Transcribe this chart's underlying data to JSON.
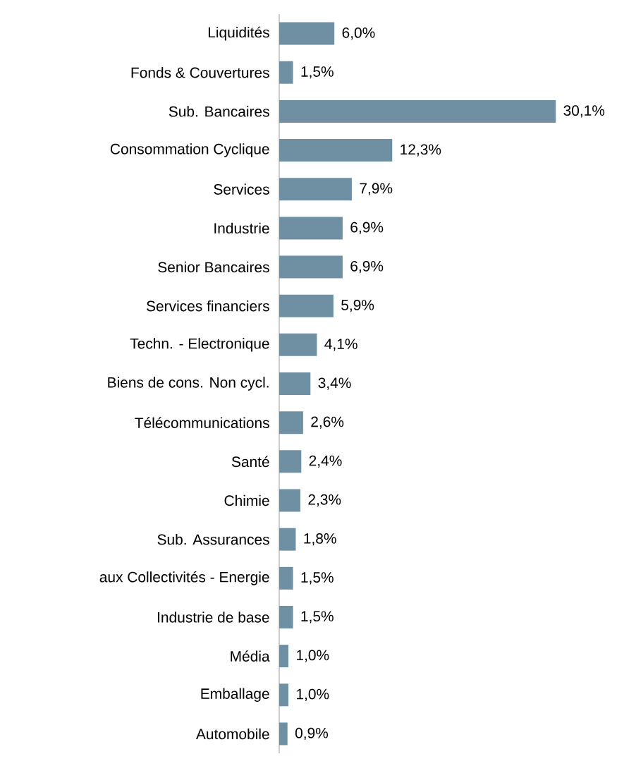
{
  "chart_data": {
    "type": "bar",
    "orientation": "horizontal",
    "color": "#6f8fa3",
    "categories": [
      "Liquidités",
      "Fonds & Couvertures",
      "Sub. Bancaires",
      "Consommation Cyclique",
      "Services",
      "Industrie",
      "Senior Bancaires",
      "Services financiers",
      "Techn. - Electronique",
      "Biens de cons. Non cycl.",
      "Télécommunications",
      "Santé",
      "Chimie",
      "Sub. Assurances",
      "aux Collectivités - Energie",
      "Industrie de base",
      "Média",
      "Emballage",
      "Automobile"
    ],
    "values": [
      6.0,
      1.5,
      30.1,
      12.3,
      7.9,
      6.9,
      6.9,
      5.9,
      4.1,
      3.4,
      2.6,
      2.4,
      2.3,
      1.8,
      1.5,
      1.5,
      1.0,
      1.0,
      0.9
    ],
    "value_labels": [
      "6,0%",
      "1,5%",
      "30,1%",
      "12,3%",
      "7,9%",
      "6,9%",
      "6,9%",
      "5,9%",
      "4,1%",
      "3,4%",
      "2,6%",
      "2,4%",
      "2,3%",
      "1,8%",
      "1,5%",
      "1,5%",
      "1,0%",
      "1,0%",
      "0,9%"
    ]
  }
}
